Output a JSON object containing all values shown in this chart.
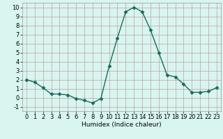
{
  "x": [
    0,
    1,
    2,
    3,
    4,
    5,
    6,
    7,
    8,
    9,
    10,
    11,
    12,
    13,
    14,
    15,
    16,
    17,
    18,
    19,
    20,
    21,
    22,
    23
  ],
  "y": [
    2,
    1.7,
    1.1,
    0.4,
    0.4,
    0.3,
    -0.1,
    -0.3,
    -0.6,
    -0.1,
    3.5,
    6.6,
    9.5,
    10.0,
    9.5,
    7.5,
    5.0,
    2.5,
    2.3,
    1.5,
    0.6,
    0.6,
    0.7,
    1.1
  ],
  "line_color": "#1a6b5a",
  "marker": "D",
  "marker_size": 2.5,
  "bg_color": "#d8f5f0",
  "grid_major_color": "#c0a0a0",
  "grid_minor_color": "#d8c0c0",
  "xlabel": "Humidex (Indice chaleur)",
  "xlim": [
    -0.5,
    23.5
  ],
  "ylim": [
    -1.5,
    10.5
  ],
  "xticks": [
    0,
    1,
    2,
    3,
    4,
    5,
    6,
    7,
    8,
    9,
    10,
    11,
    12,
    13,
    14,
    15,
    16,
    17,
    18,
    19,
    20,
    21,
    22,
    23
  ],
  "yticks": [
    -1,
    0,
    1,
    2,
    3,
    4,
    5,
    6,
    7,
    8,
    9,
    10
  ],
  "xlabel_fontsize": 6.5,
  "tick_fontsize": 6.0
}
